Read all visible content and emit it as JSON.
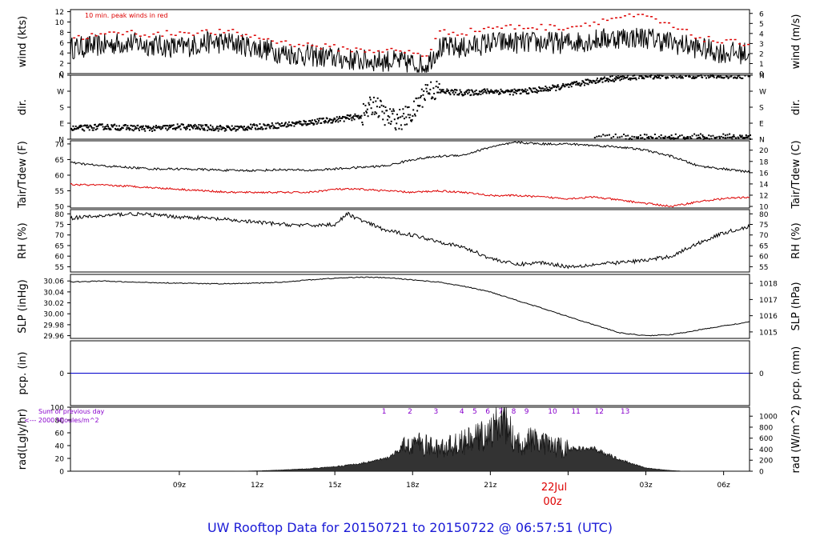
{
  "footer_title": "UW Rooftop Data for 20150721  to  20150722 @ 06:57:51  (UTC)",
  "date_label": "22Jul",
  "date_label_sub": "00z",
  "time_axis": {
    "range_hours": [
      4.8,
      7.0
    ],
    "ticks": [
      {
        "h": 9,
        "label": "09z"
      },
      {
        "h": 12,
        "label": "12z"
      },
      {
        "h": 15,
        "label": "15z"
      },
      {
        "h": 18,
        "label": "18z"
      },
      {
        "h": 21,
        "label": "21z"
      },
      {
        "h": 27,
        "label": "03z"
      },
      {
        "h": 30,
        "label": "06z"
      }
    ]
  },
  "colors": {
    "line": "#000000",
    "peak": "#dd0000",
    "dewpoint": "#dd0000",
    "precip": "#0000cc",
    "annotation": "#8800cc",
    "footer": "#1a1ad6"
  },
  "chart_data": [
    {
      "type": "line",
      "name": "wind",
      "ylabel_left": "wind (kts)",
      "ylabel_right": "wind (m/s)",
      "annotation": "10 min. peak winds in red",
      "yticks_left": [
        "0",
        "2",
        "4",
        "6",
        "8",
        "10",
        "12"
      ],
      "ylim_left": [
        0,
        12.4
      ],
      "yticks_right": [
        "0",
        "1",
        "2",
        "3",
        "4",
        "5",
        "6"
      ],
      "ylim_right": [
        0,
        6.38
      ],
      "series": [
        {
          "name": "wind",
          "x": [
            5,
            6,
            7,
            8,
            9,
            10,
            11,
            12,
            13,
            14,
            15,
            16,
            17,
            18,
            18.5,
            19,
            20,
            21,
            22,
            23,
            24,
            25,
            26,
            27,
            28,
            29,
            30,
            31
          ],
          "y": [
            5,
            5.5,
            6,
            5.5,
            5,
            6,
            6,
            5,
            4,
            3.5,
            3,
            2.5,
            2.5,
            2,
            1.5,
            5,
            5,
            6,
            6,
            6,
            6,
            6.5,
            7,
            7,
            6,
            5,
            4,
            4
          ]
        },
        {
          "name": "peak",
          "x": [
            5,
            6,
            7,
            8,
            9,
            10,
            11,
            12,
            13,
            14,
            15,
            16,
            17,
            18,
            18.5,
            19,
            20,
            21,
            22,
            23,
            24,
            25,
            26,
            27,
            28,
            29,
            30,
            31
          ],
          "y": [
            7,
            7.5,
            8,
            7.5,
            8,
            8,
            8,
            7,
            6,
            5.5,
            5,
            4.5,
            4.5,
            4,
            3.5,
            8,
            8,
            9,
            9,
            9,
            9,
            10,
            11,
            11,
            9,
            7,
            6,
            6
          ]
        }
      ]
    },
    {
      "type": "scatter",
      "name": "dir",
      "ylabel_left": "dir.",
      "ylabel_right": "dir.",
      "yticks": [
        "N",
        "E",
        "S",
        "W",
        "N"
      ],
      "ylim": [
        0,
        360
      ],
      "series": [
        {
          "name": "dir",
          "x": [
            5,
            6,
            7,
            8,
            9,
            10,
            11,
            12,
            13,
            14,
            15,
            16,
            16.5,
            17,
            17.5,
            18,
            18.5,
            19,
            20,
            21,
            22,
            23,
            24,
            25,
            26,
            27,
            28,
            29,
            30,
            31
          ],
          "y": [
            60,
            70,
            65,
            60,
            70,
            65,
            60,
            70,
            80,
            95,
            110,
            130,
            200,
            120,
            110,
            150,
            280,
            270,
            260,
            270,
            265,
            280,
            300,
            330,
            345,
            355,
            357,
            358,
            358,
            358
          ]
        }
      ]
    },
    {
      "type": "line",
      "name": "temperature",
      "ylabel_left": "Tair/Tdew (F)",
      "ylabel_right": "Tair/Tdew (C)",
      "yticks_left": [
        "50",
        "55",
        "60",
        "65",
        "70"
      ],
      "ylim_left": [
        49.5,
        71
      ],
      "yticks_right": [
        "10",
        "12",
        "14",
        "16",
        "18",
        "20"
      ],
      "ylim_right": [
        9.72,
        21.67
      ],
      "series": [
        {
          "name": "Tair",
          "x": [
            4.8,
            6,
            7,
            8,
            9,
            10,
            11,
            12,
            13,
            14,
            15,
            16,
            17,
            18,
            19,
            20,
            21,
            22,
            23,
            24,
            25,
            26,
            27,
            28,
            29,
            30,
            31
          ],
          "y": [
            64,
            63,
            62.5,
            62,
            62,
            61.8,
            61.5,
            61.5,
            61.8,
            61.5,
            62,
            62.5,
            63,
            65,
            66,
            66.5,
            69,
            70.5,
            70,
            70,
            69.5,
            69,
            68,
            66,
            63,
            62,
            61
          ]
        },
        {
          "name": "Tdew",
          "x": [
            4.8,
            6,
            7,
            8,
            9,
            10,
            11,
            12,
            13,
            14,
            15,
            16,
            17,
            18,
            19,
            20,
            21,
            22,
            23,
            24,
            25,
            26,
            27,
            28,
            29,
            30,
            31
          ],
          "y": [
            57,
            56.8,
            56.5,
            56,
            55.5,
            55,
            54.5,
            54.5,
            54.5,
            54.5,
            55.5,
            55.5,
            55,
            54.5,
            55,
            54.5,
            53.5,
            53.5,
            53,
            52.5,
            53,
            52,
            51,
            50,
            51.5,
            52.5,
            53
          ]
        }
      ]
    },
    {
      "type": "line",
      "name": "rh",
      "ylabel_left": "RH (%)",
      "ylabel_right": "RH (%)",
      "yticks": [
        "55",
        "60",
        "65",
        "70",
        "75",
        "80"
      ],
      "ylim": [
        52.5,
        82
      ],
      "series": [
        {
          "name": "RH",
          "x": [
            4.8,
            6,
            7,
            8,
            9,
            10,
            11,
            12,
            13,
            14,
            15,
            15.5,
            16,
            17,
            18,
            19,
            20,
            21,
            22,
            23,
            24,
            25,
            26,
            27,
            28,
            29,
            30,
            31
          ],
          "y": [
            78,
            79,
            80,
            79.5,
            78.5,
            78,
            77,
            76,
            75,
            74.5,
            75,
            80,
            77,
            72,
            70,
            67,
            64,
            59,
            56,
            57,
            55,
            56,
            57,
            58,
            60,
            66,
            71,
            74
          ]
        }
      ]
    },
    {
      "type": "line",
      "name": "slp",
      "ylabel_left": "SLP (inHg)",
      "ylabel_right": "SLP (hPa)",
      "yticks_left": [
        "29.96",
        "29.98",
        "30.00",
        "30.02",
        "30.04",
        "30.06"
      ],
      "ylim_left": [
        29.955,
        30.072
      ],
      "yticks_right": [
        "1015",
        "1016",
        "1017",
        "1018"
      ],
      "ylim_right": [
        1014.6,
        1018.55
      ],
      "series": [
        {
          "name": "SLP",
          "x": [
            4.8,
            6,
            7,
            8,
            9,
            10,
            11,
            12,
            13,
            14,
            15,
            16,
            17,
            18,
            19,
            20,
            21,
            22,
            23,
            24,
            25,
            26,
            27,
            28,
            29,
            30,
            31
          ],
          "y": [
            30.058,
            30.06,
            30.058,
            30.057,
            30.056,
            30.055,
            30.055,
            30.056,
            30.058,
            30.062,
            30.065,
            30.067,
            30.066,
            30.062,
            30.058,
            30.05,
            30.04,
            30.025,
            30.01,
            29.995,
            29.98,
            29.965,
            29.96,
            29.962,
            29.97,
            29.978,
            29.985
          ]
        }
      ]
    },
    {
      "type": "line",
      "name": "pcp",
      "ylabel_left": "pcp. (in)",
      "ylabel_right": "pcp. (mm)",
      "yticks_left": [
        "0"
      ],
      "yticks_right": [
        "0"
      ],
      "ylim": [
        -1,
        1
      ],
      "series": [
        {
          "name": "pcp",
          "x": [
            4.8,
            31
          ],
          "y": [
            0,
            0
          ]
        }
      ]
    },
    {
      "type": "area",
      "name": "rad",
      "ylabel_left": "rad(Lgly/hr)",
      "ylabel_right": "rad (W/m^2)",
      "annotation_line1": "Sum of previous day",
      "annotation_line2": "<--- 2000 MJoules/m^2",
      "yticks_left": [
        "0",
        "20",
        "40",
        "60",
        "80",
        "100"
      ],
      "ylim_left": [
        0,
        100
      ],
      "yticks_right": [
        "0",
        "200",
        "400",
        "600",
        "800",
        "1000"
      ],
      "ylim_right": [
        0,
        1163
      ],
      "hour_labels": [
        "1",
        "2",
        "3",
        "4",
        "5",
        "6",
        "7",
        "8",
        "9",
        "10",
        "11",
        "12",
        "13"
      ],
      "hour_label_x": [
        16.9,
        17.9,
        18.9,
        19.9,
        20.4,
        20.9,
        21.4,
        21.9,
        22.4,
        23.4,
        24.3,
        25.2,
        26.2
      ],
      "series": [
        {
          "name": "rad",
          "x": [
            4.8,
            11,
            12,
            13,
            14,
            15,
            16,
            17,
            18,
            19,
            20,
            21,
            21.5,
            22,
            22.5,
            23,
            24,
            25,
            26,
            27,
            28,
            28.5,
            31
          ],
          "y": [
            0,
            0,
            0.5,
            2,
            4,
            7,
            12,
            20,
            45,
            35,
            45,
            60,
            85,
            40,
            50,
            42,
            35,
            35,
            18,
            5,
            1,
            0,
            0
          ]
        }
      ]
    }
  ]
}
